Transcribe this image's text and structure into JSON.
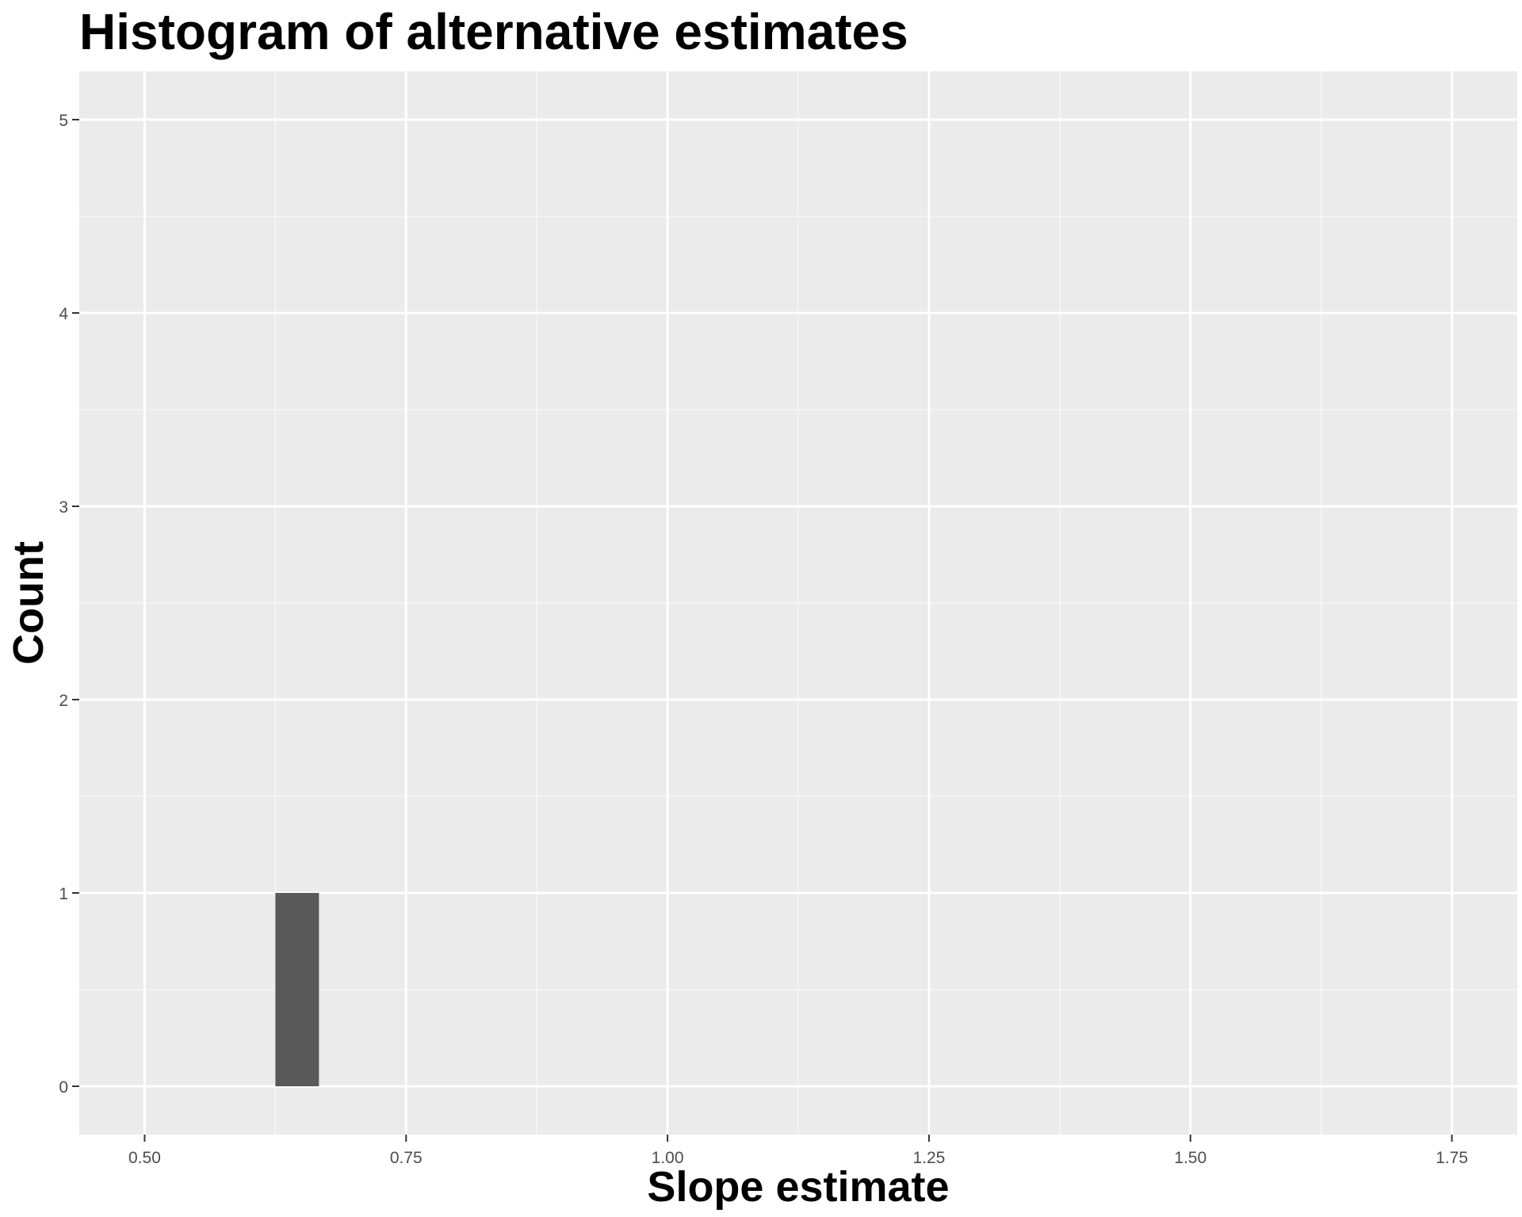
{
  "chart_data": {
    "type": "bar",
    "title": "Histogram of alternative estimates",
    "xlabel": "Slope estimate",
    "ylabel": "Count",
    "xlim": [
      0.4375,
      1.8125
    ],
    "ylim": [
      -0.25,
      5.25
    ],
    "x_ticks": [
      0.5,
      0.75,
      1.0,
      1.25,
      1.5,
      1.75
    ],
    "x_tick_labels": [
      "0.50",
      "0.75",
      "1.00",
      "1.25",
      "1.50",
      "1.75"
    ],
    "y_ticks": [
      0,
      1,
      2,
      3,
      4,
      5
    ],
    "y_tick_labels": [
      "0",
      "1",
      "2",
      "3",
      "4",
      "5"
    ],
    "bins": [
      {
        "x_start": 0.625,
        "x_end": 0.6667,
        "count": 1
      }
    ],
    "grid": true,
    "legend": "none",
    "colors": {
      "panel_background": "#ebebeb",
      "grid_major": "#ffffff",
      "grid_minor": "#f6f6f6",
      "bar_fill": "#595959",
      "tick_color": "#333333"
    }
  }
}
